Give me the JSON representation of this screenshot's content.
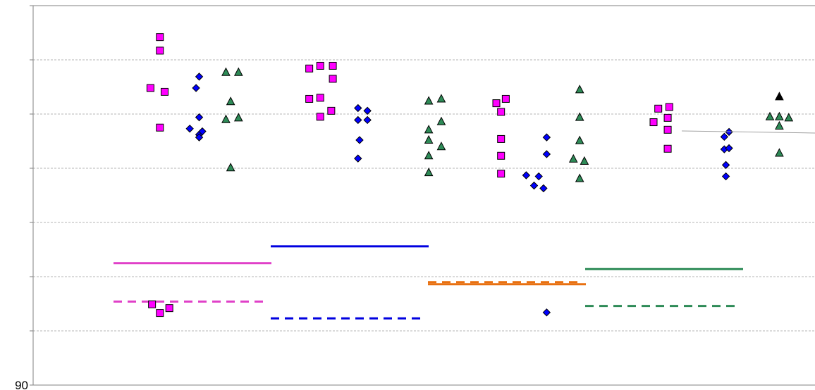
{
  "chart_data": {
    "type": "scatter",
    "title": "",
    "xlabel": "",
    "ylabel": "",
    "ylim": [
      90,
      97
    ],
    "y_tick_labels": [
      {
        "value": 90,
        "label": "90"
      }
    ],
    "grid": true,
    "legend": "none",
    "groups": [
      {
        "color": "#e040c8",
        "reference_solid": 92.25,
        "reference_dashed": 91.54,
        "series": [
          {
            "marker": "square",
            "color": "#ff00ff",
            "points": [
              {
                "x": 0.795,
                "y": 96.42
              },
              {
                "x": 0.795,
                "y": 96.17
              },
              {
                "x": 0.735,
                "y": 95.48
              },
              {
                "x": 0.825,
                "y": 95.41
              },
              {
                "x": 0.795,
                "y": 94.75
              },
              {
                "x": 0.745,
                "y": 91.49
              },
              {
                "x": 0.795,
                "y": 91.33
              },
              {
                "x": 0.855,
                "y": 91.42
              }
            ]
          },
          {
            "marker": "diamond",
            "color": "#0000ff",
            "points": [
              {
                "x": 1.045,
                "y": 95.69
              },
              {
                "x": 1.025,
                "y": 95.48
              },
              {
                "x": 1.045,
                "y": 94.94
              },
              {
                "x": 1.045,
                "y": 94.62
              },
              {
                "x": 0.985,
                "y": 94.73
              },
              {
                "x": 1.045,
                "y": 94.57
              },
              {
                "x": 1.065,
                "y": 94.68
              }
            ]
          },
          {
            "marker": "triangle",
            "color": "#2e8b57",
            "points": [
              {
                "x": 1.215,
                "y": 95.77
              },
              {
                "x": 1.295,
                "y": 95.77
              },
              {
                "x": 1.245,
                "y": 95.23
              },
              {
                "x": 1.215,
                "y": 94.9
              },
              {
                "x": 1.295,
                "y": 94.93
              },
              {
                "x": 1.245,
                "y": 94.01
              }
            ]
          }
        ]
      },
      {
        "color": "#0000e0",
        "reference_solid": 92.56,
        "reference_dashed": 91.23,
        "series": [
          {
            "marker": "square",
            "color": "#ff00ff",
            "points": [
              {
                "x": 1.745,
                "y": 95.84
              },
              {
                "x": 1.815,
                "y": 95.89
              },
              {
                "x": 1.895,
                "y": 95.89
              },
              {
                "x": 1.895,
                "y": 95.65
              },
              {
                "x": 1.745,
                "y": 95.28
              },
              {
                "x": 1.815,
                "y": 95.3
              },
              {
                "x": 1.885,
                "y": 95.06
              },
              {
                "x": 1.815,
                "y": 94.95
              }
            ]
          },
          {
            "marker": "diamond",
            "color": "#0000ff",
            "points": [
              {
                "x": 2.055,
                "y": 95.11
              },
              {
                "x": 2.115,
                "y": 95.06
              },
              {
                "x": 2.055,
                "y": 94.89
              },
              {
                "x": 2.115,
                "y": 94.89
              },
              {
                "x": 2.065,
                "y": 94.52
              },
              {
                "x": 2.055,
                "y": 94.18
              }
            ]
          },
          {
            "marker": "triangle",
            "color": "#2e8b57",
            "points": [
              {
                "x": 2.505,
                "y": 95.24
              },
              {
                "x": 2.585,
                "y": 95.28
              },
              {
                "x": 2.585,
                "y": 94.86
              },
              {
                "x": 2.505,
                "y": 94.71
              },
              {
                "x": 2.505,
                "y": 94.52
              },
              {
                "x": 2.585,
                "y": 94.4
              },
              {
                "x": 2.505,
                "y": 94.23
              },
              {
                "x": 2.505,
                "y": 93.92
              }
            ]
          }
        ]
      },
      {
        "color": "#e87010",
        "reference_solid": 91.86,
        "reference_dashed": 91.9,
        "series": [
          {
            "marker": "square",
            "color": "#ff00ff",
            "points": [
              {
                "x": 2.935,
                "y": 95.2
              },
              {
                "x": 2.995,
                "y": 95.28
              },
              {
                "x": 2.965,
                "y": 95.04
              },
              {
                "x": 2.965,
                "y": 94.54
              },
              {
                "x": 2.965,
                "y": 94.23
              },
              {
                "x": 2.965,
                "y": 93.9
              }
            ]
          },
          {
            "marker": "diamond",
            "color": "#0000ff",
            "points": [
              {
                "x": 3.255,
                "y": 94.57
              },
              {
                "x": 3.255,
                "y": 94.26
              },
              {
                "x": 3.125,
                "y": 93.87
              },
              {
                "x": 3.205,
                "y": 93.85
              },
              {
                "x": 3.175,
                "y": 93.68
              },
              {
                "x": 3.235,
                "y": 93.63
              },
              {
                "x": 3.255,
                "y": 91.34
              }
            ]
          },
          {
            "marker": "triangle",
            "color": "#2e8b57",
            "points": [
              {
                "x": 3.465,
                "y": 95.45
              },
              {
                "x": 3.465,
                "y": 94.94
              },
              {
                "x": 3.465,
                "y": 94.51
              },
              {
                "x": 3.425,
                "y": 94.17
              },
              {
                "x": 3.495,
                "y": 94.13
              },
              {
                "x": 3.465,
                "y": 93.81
              }
            ]
          }
        ]
      },
      {
        "color": "#2e8b57",
        "reference_solid": 92.14,
        "reference_dashed": 91.46,
        "series": [
          {
            "marker": "square",
            "color": "#ff00ff",
            "points": [
              {
                "x": 3.965,
                "y": 95.1
              },
              {
                "x": 4.035,
                "y": 95.13
              },
              {
                "x": 4.025,
                "y": 94.93
              },
              {
                "x": 3.935,
                "y": 94.85
              },
              {
                "x": 4.025,
                "y": 94.71
              },
              {
                "x": 4.025,
                "y": 94.36
              }
            ]
          },
          {
            "marker": "diamond",
            "color": "#0000ff",
            "points": [
              {
                "x": 4.385,
                "y": 94.58
              },
              {
                "x": 4.415,
                "y": 94.67
              },
              {
                "x": 4.385,
                "y": 94.35
              },
              {
                "x": 4.415,
                "y": 94.37
              },
              {
                "x": 4.395,
                "y": 94.06
              },
              {
                "x": 4.395,
                "y": 93.85
              }
            ]
          },
          {
            "marker": "triangle",
            "color": "#2e8b57",
            "points": [
              {
                "x": 4.675,
                "y": 94.95
              },
              {
                "x": 4.735,
                "y": 94.95
              },
              {
                "x": 4.795,
                "y": 94.93
              },
              {
                "x": 4.735,
                "y": 94.78
              },
              {
                "x": 4.735,
                "y": 94.28
              }
            ]
          },
          {
            "marker": "triangle",
            "color": "#000000",
            "points": [
              {
                "x": 4.735,
                "y": 95.32
              }
            ]
          }
        ]
      }
    ]
  }
}
